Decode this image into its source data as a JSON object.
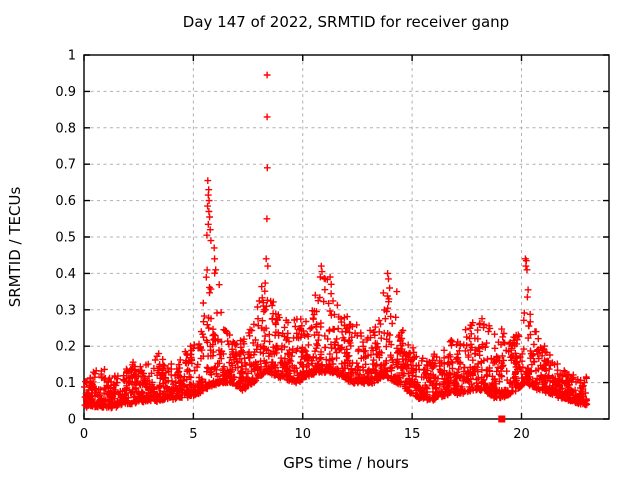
{
  "chart_data": {
    "type": "scatter",
    "title": "Day 147 of 2022, SRMTID for receiver ganp",
    "xlabel": "GPS time / hours",
    "ylabel": "SRMTID / TECUs",
    "xlim": [
      0,
      24
    ],
    "ylim": [
      0,
      1
    ],
    "xticks": [
      0,
      5,
      10,
      15,
      20
    ],
    "xtick_labels": [
      "0",
      "5",
      "10",
      "15",
      "20"
    ],
    "yticks": [
      0,
      0.1,
      0.2,
      0.3,
      0.4,
      0.5,
      0.6,
      0.7,
      0.8,
      0.9,
      1
    ],
    "ytick_labels": [
      "0",
      "0.1",
      "0.2",
      "0.3",
      "0.4",
      "0.5",
      "0.6",
      "0.7",
      "0.8",
      "0.9",
      "1"
    ],
    "grid": true,
    "legend": null,
    "marker": "plus",
    "colors": {
      "marker": "#ff0000",
      "axis": "#000000",
      "grid": "#b0b0b0",
      "background": "#ffffff",
      "text": "#000000"
    },
    "data_time_range_hours": [
      0,
      23.0
    ],
    "band_bins_comment": "dense scatter band: [bin_center_hour, min_value, max_value] read from plot",
    "band_bins": [
      [
        0.25,
        0.035,
        0.11
      ],
      [
        0.75,
        0.035,
        0.16
      ],
      [
        1.25,
        0.03,
        0.11
      ],
      [
        1.75,
        0.04,
        0.14
      ],
      [
        2.25,
        0.045,
        0.16
      ],
      [
        2.75,
        0.05,
        0.14
      ],
      [
        3.25,
        0.05,
        0.19
      ],
      [
        3.75,
        0.055,
        0.16
      ],
      [
        4.25,
        0.055,
        0.15
      ],
      [
        4.75,
        0.06,
        0.2
      ],
      [
        5.25,
        0.07,
        0.23
      ],
      [
        5.75,
        0.09,
        0.48
      ],
      [
        6.25,
        0.1,
        0.38
      ],
      [
        6.75,
        0.1,
        0.23
      ],
      [
        7.25,
        0.08,
        0.22
      ],
      [
        7.75,
        0.1,
        0.26
      ],
      [
        8.25,
        0.13,
        0.4
      ],
      [
        8.75,
        0.12,
        0.31
      ],
      [
        9.25,
        0.11,
        0.27
      ],
      [
        9.75,
        0.1,
        0.28
      ],
      [
        10.25,
        0.12,
        0.28
      ],
      [
        10.75,
        0.13,
        0.4
      ],
      [
        11.25,
        0.13,
        0.4
      ],
      [
        11.75,
        0.12,
        0.3
      ],
      [
        12.25,
        0.1,
        0.28
      ],
      [
        12.75,
        0.1,
        0.26
      ],
      [
        13.25,
        0.1,
        0.25
      ],
      [
        13.75,
        0.12,
        0.38
      ],
      [
        14.25,
        0.1,
        0.3
      ],
      [
        14.75,
        0.08,
        0.22
      ],
      [
        15.25,
        0.06,
        0.18
      ],
      [
        15.75,
        0.05,
        0.16
      ],
      [
        16.25,
        0.06,
        0.2
      ],
      [
        16.75,
        0.07,
        0.22
      ],
      [
        17.25,
        0.07,
        0.24
      ],
      [
        17.75,
        0.08,
        0.27
      ],
      [
        18.25,
        0.08,
        0.28
      ],
      [
        18.75,
        0.06,
        0.24
      ],
      [
        19.25,
        0.06,
        0.28
      ],
      [
        19.75,
        0.08,
        0.24
      ],
      [
        20.25,
        0.1,
        0.32
      ],
      [
        20.75,
        0.08,
        0.25
      ],
      [
        21.25,
        0.07,
        0.18
      ],
      [
        21.75,
        0.06,
        0.15
      ],
      [
        22.25,
        0.05,
        0.13
      ],
      [
        22.75,
        0.04,
        0.12
      ]
    ],
    "outlier_points_comment": "isolated high spikes: [hour, TECU]",
    "outlier_points": [
      [
        5.66,
        0.655
      ],
      [
        5.7,
        0.63
      ],
      [
        5.68,
        0.615
      ],
      [
        5.72,
        0.6
      ],
      [
        5.65,
        0.585
      ],
      [
        5.71,
        0.57
      ],
      [
        5.74,
        0.555
      ],
      [
        5.68,
        0.535
      ],
      [
        5.77,
        0.52
      ],
      [
        5.62,
        0.505
      ],
      [
        5.8,
        0.49
      ],
      [
        5.95,
        0.47
      ],
      [
        5.97,
        0.44
      ],
      [
        6.02,
        0.41
      ],
      [
        8.37,
        0.945
      ],
      [
        8.37,
        0.83
      ],
      [
        8.38,
        0.69
      ],
      [
        8.36,
        0.55
      ],
      [
        8.33,
        0.44
      ],
      [
        8.4,
        0.42
      ],
      [
        10.85,
        0.42
      ],
      [
        10.88,
        0.405
      ],
      [
        10.8,
        0.39
      ],
      [
        11.25,
        0.39
      ],
      [
        11.3,
        0.37
      ],
      [
        13.88,
        0.4
      ],
      [
        13.92,
        0.385
      ],
      [
        13.97,
        0.36
      ],
      [
        14.3,
        0.35
      ],
      [
        20.18,
        0.44
      ],
      [
        20.22,
        0.435
      ],
      [
        20.2,
        0.42
      ],
      [
        20.25,
        0.41
      ],
      [
        20.3,
        0.355
      ],
      [
        20.27,
        0.335
      ]
    ],
    "square_marker_point_comment": "single filled-square datum sitting on the x-axis",
    "square_marker_point": [
      19.1,
      0.0
    ],
    "render": {
      "points_per_bin": 54,
      "bin_width_hours": 0.5,
      "seed": 147
    }
  }
}
